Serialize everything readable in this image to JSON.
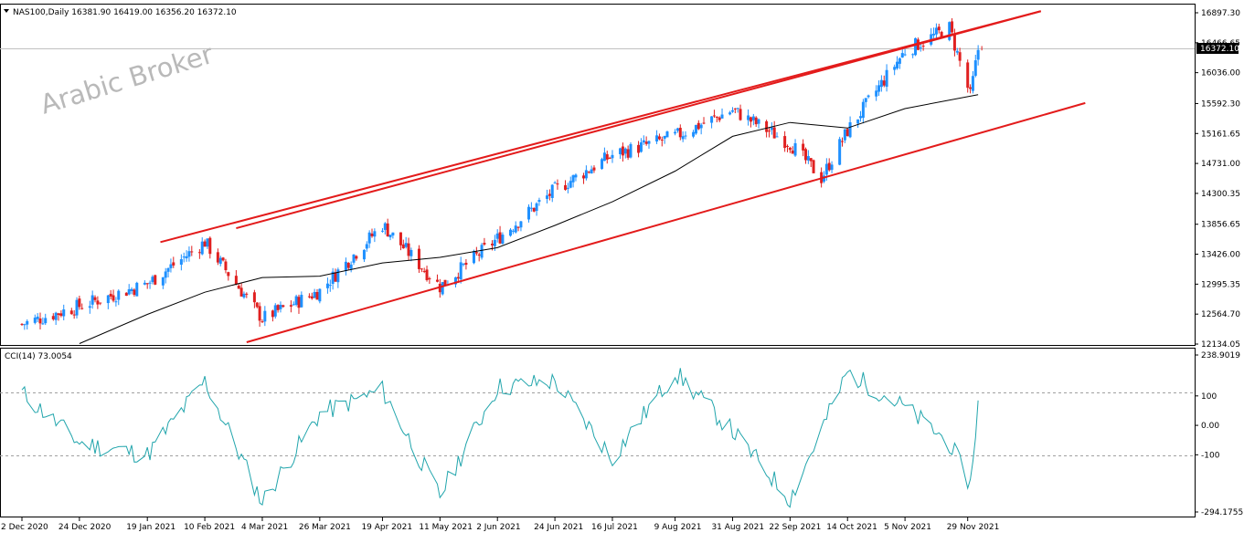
{
  "header": {
    "symbol_line": "NAS100,Daily  16381.90 16419.00 16356.20 16372.10",
    "indicator_line": "CCI(14) 73.0054"
  },
  "watermark": "Arabic Broker",
  "price_axis": {
    "labels": [
      "16897.30",
      "16466.65",
      "16036.00",
      "15592.30",
      "15161.65",
      "14731.00",
      "14300.35",
      "13856.65",
      "13426.00",
      "12995.35",
      "12564.70",
      "12134.05"
    ],
    "current_price": "16372.10"
  },
  "cci_axis": {
    "labels": [
      "238.9019",
      "100",
      "0.00",
      "-100",
      "-294.1755"
    ]
  },
  "time_axis": {
    "labels": [
      "2 Dec 2020",
      "24 Dec 2020",
      "19 Jan 2021",
      "10 Feb 2021",
      "4 Mar 2021",
      "26 Mar 2021",
      "19 Apr 2021",
      "11 May 2021",
      "2 Jun 2021",
      "24 Jun 2021",
      "16 Jul 2021",
      "9 Aug 2021",
      "31 Aug 2021",
      "22 Sep 2021",
      "14 Oct 2021",
      "5 Nov 2021",
      "29 Nov 2021"
    ]
  },
  "colors": {
    "bull": "#1e90ff",
    "bear": "#e02020",
    "trend": "#e31b1b",
    "ma": "#000000",
    "cci": "#21a5ac",
    "grid": "#b0b0b0"
  },
  "chart_data": [
    {
      "type": "candlestick",
      "title": "NAS100,Daily",
      "ylim": [
        12134.05,
        16897.3
      ],
      "x_range": [
        "2020-12-02",
        "2021-12-06"
      ],
      "key_points": [
        {
          "date": "2020-12-02",
          "close": 12420
        },
        {
          "date": "2020-12-24",
          "close": 12680
        },
        {
          "date": "2021-01-19",
          "close": 13000
        },
        {
          "date": "2021-02-10",
          "close": 13600
        },
        {
          "date": "2021-03-04",
          "close": 12500
        },
        {
          "date": "2021-03-26",
          "close": 12900
        },
        {
          "date": "2021-04-19",
          "close": 13850
        },
        {
          "date": "2021-05-11",
          "close": 12960
        },
        {
          "date": "2021-06-02",
          "close": 13650
        },
        {
          "date": "2021-06-24",
          "close": 14350
        },
        {
          "date": "2021-07-16",
          "close": 14850
        },
        {
          "date": "2021-08-09",
          "close": 15120
        },
        {
          "date": "2021-08-31",
          "close": 15500
        },
        {
          "date": "2021-09-22",
          "close": 15020
        },
        {
          "date": "2021-10-04",
          "close": 14520
        },
        {
          "date": "2021-10-14",
          "close": 15200
        },
        {
          "date": "2021-11-05",
          "close": 16350
        },
        {
          "date": "2021-11-22",
          "close": 16680
        },
        {
          "date": "2021-11-30",
          "close": 15700
        },
        {
          "date": "2021-12-03",
          "close": 16372.1
        }
      ],
      "moving_average": [
        {
          "date": "2020-12-24",
          "value": 12140
        },
        {
          "date": "2021-01-19",
          "value": 12560
        },
        {
          "date": "2021-02-10",
          "value": 12880
        },
        {
          "date": "2021-03-04",
          "value": 13090
        },
        {
          "date": "2021-03-26",
          "value": 13110
        },
        {
          "date": "2021-04-19",
          "value": 13300
        },
        {
          "date": "2021-05-11",
          "value": 13380
        },
        {
          "date": "2021-06-02",
          "value": 13520
        },
        {
          "date": "2021-06-24",
          "value": 13840
        },
        {
          "date": "2021-07-16",
          "value": 14180
        },
        {
          "date": "2021-08-09",
          "value": 14620
        },
        {
          "date": "2021-08-31",
          "value": 15120
        },
        {
          "date": "2021-09-22",
          "value": 15320
        },
        {
          "date": "2021-10-14",
          "value": 15240
        },
        {
          "date": "2021-11-05",
          "value": 15520
        },
        {
          "date": "2021-12-03",
          "value": 15720
        }
      ],
      "trend_lines": [
        {
          "from": {
            "date": "2021-01-24",
            "price": 13600
          },
          "to": {
            "date": "2021-12-27",
            "price": 16920
          }
        },
        {
          "from": {
            "date": "2021-02-22",
            "price": 13800
          },
          "to": {
            "date": "2021-12-27",
            "price": 16920
          }
        },
        {
          "from": {
            "date": "2021-02-26",
            "price": 12160
          },
          "to": {
            "date": "2022-01-13",
            "price": 15600
          }
        }
      ]
    },
    {
      "type": "line",
      "title": "CCI(14) 73.0054",
      "ylim": [
        -294.1755,
        238.9019
      ],
      "levels": [
        100,
        -100
      ],
      "points": [
        {
          "date": "2020-12-02",
          "value": 110
        },
        {
          "date": "2020-12-24",
          "value": -60
        },
        {
          "date": "2021-01-19",
          "value": -100
        },
        {
          "date": "2021-02-10",
          "value": 150
        },
        {
          "date": "2021-03-04",
          "value": -260
        },
        {
          "date": "2021-03-26",
          "value": 40
        },
        {
          "date": "2021-04-19",
          "value": 120
        },
        {
          "date": "2021-05-11",
          "value": -240
        },
        {
          "date": "2021-06-02",
          "value": 130
        },
        {
          "date": "2021-06-24",
          "value": 150
        },
        {
          "date": "2021-07-16",
          "value": -110
        },
        {
          "date": "2021-08-09",
          "value": 180
        },
        {
          "date": "2021-08-31",
          "value": -20
        },
        {
          "date": "2021-09-22",
          "value": -250
        },
        {
          "date": "2021-10-14",
          "value": 180
        },
        {
          "date": "2021-11-05",
          "value": 60
        },
        {
          "date": "2021-11-22",
          "value": -60
        },
        {
          "date": "2021-11-30",
          "value": -200
        },
        {
          "date": "2021-12-03",
          "value": 73.0054
        }
      ]
    }
  ]
}
